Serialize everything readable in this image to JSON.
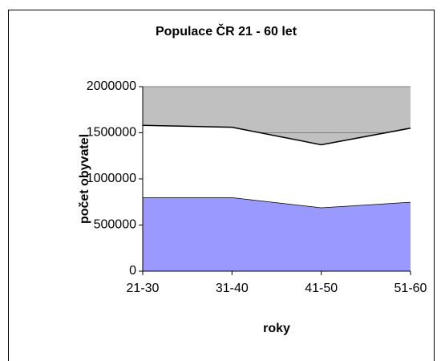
{
  "chart_data": {
    "type": "stacked_area",
    "title": "Populace ČR 21 - 60 let",
    "x_label": "roky",
    "y_label": "počet obyvatel",
    "categories": [
      "21-30",
      "31-40",
      "41-50",
      "51-60"
    ],
    "series": [
      {
        "color": "#9999ff",
        "values": [
          800000,
          800000,
          690000,
          750000
        ]
      },
      {
        "color": "#ffffff",
        "values": [
          780000,
          760000,
          680000,
          800000
        ]
      }
    ],
    "ylim": [
      0,
      2000000
    ],
    "yticks": [
      0,
      500000,
      1000000,
      1500000,
      2000000
    ],
    "grid": true,
    "plot_background": "#c0c0c0"
  }
}
